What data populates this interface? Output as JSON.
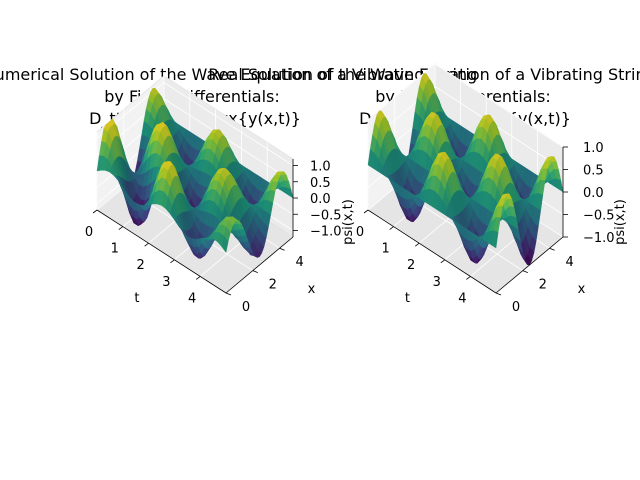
{
  "chart_data": [
    {
      "type": "surface",
      "title_lines": [
        "Numerical Solution of the Wave Equation of a Vibrating String",
        "by Finite Differentials:",
        "D_tt{y(x,t)}=D_xx{y(x,t)}"
      ],
      "xlabel": "t",
      "ylabel": "x",
      "zlabel": "psi(x,t)",
      "xticks": [
        "0",
        "1",
        "2",
        "3",
        "4"
      ],
      "yticks": [
        "0",
        "2",
        "4"
      ],
      "zticks": [
        "1.0",
        "0.5",
        "0.0",
        "−0.5",
        "−1.0"
      ],
      "xlim": [
        0,
        5
      ],
      "ylim": [
        0,
        5
      ],
      "zlim": [
        -1.2,
        1.2
      ],
      "colormap": "viridis",
      "grid": true
    },
    {
      "type": "surface",
      "title_lines": [
        "Real Solution of the Wave Equation of a Vibrating String",
        "by Finite Differentials:",
        "D_tt{y(x,t)}=D_xx{y(x,t)}"
      ],
      "xlabel": "t",
      "ylabel": "x",
      "zlabel": "psi(x,t)",
      "xticks": [
        "0",
        "1",
        "2",
        "3",
        "4"
      ],
      "yticks": [
        "0",
        "2",
        "4"
      ],
      "zticks": [
        "1.0",
        "0.5",
        "0.0",
        "−0.5",
        "−1.0"
      ],
      "xlim": [
        0,
        5
      ],
      "ylim": [
        0,
        5
      ],
      "zlim": [
        -1.0,
        1.0
      ],
      "colormap": "viridis",
      "grid": true
    }
  ]
}
